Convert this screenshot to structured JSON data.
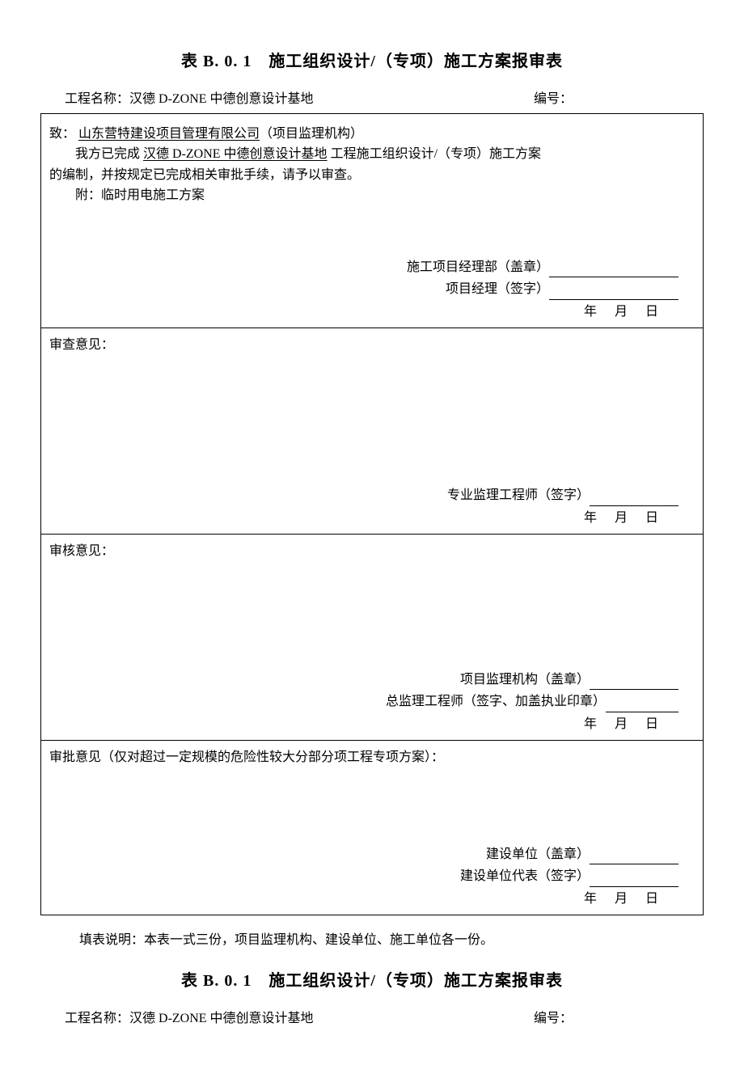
{
  "form1": {
    "title": "表 B. 0. 1　施工组织设计/（专项）施工方案报审表",
    "header": {
      "project_label": "工程名称：",
      "project_name": "汉德 D-ZONE 中德创意设计基地",
      "number_label": "编号："
    },
    "section1": {
      "to_label": "致：",
      "to_value": "山东营特建设项目管理有限公司",
      "to_suffix": "（项目监理机构）",
      "body_prefix": "我方已完成",
      "body_project": "汉德 D-ZONE 中德创意设计基地",
      "body_suffix1": "工程施工组织设计/（专项）施工方案",
      "body_line2": "的编制，并按规定已完成相关审批手续，请予以审查。",
      "attach_label": "附：",
      "attach_value": "临时用电施工方案",
      "sig1_label": "施工项目经理部（盖章）",
      "sig2_label": "项目经理（签字）",
      "date_y": "年",
      "date_m": "月",
      "date_d": "日"
    },
    "section2": {
      "heading": "审查意见：",
      "sig_label": "专业监理工程师（签字）",
      "date_y": "年",
      "date_m": "月",
      "date_d": "日"
    },
    "section3": {
      "heading": "审核意见：",
      "sig1_label": "项目监理机构（盖章）",
      "sig2_label": "总监理工程师（签字、加盖执业印章）",
      "date_y": "年",
      "date_m": "月",
      "date_d": "日"
    },
    "section4": {
      "heading": "审批意见（仅对超过一定规模的危险性较大分部分项工程专项方案）：",
      "sig1_label": "建设单位（盖章）",
      "sig2_label": "建设单位代表（签字）",
      "date_y": "年",
      "date_m": "月",
      "date_d": "日"
    },
    "footer_note": "填表说明：本表一式三份，项目监理机构、建设单位、施工单位各一份。"
  },
  "form2": {
    "title": "表 B. 0. 1　施工组织设计/（专项）施工方案报审表",
    "header": {
      "project_label": "工程名称：",
      "project_name": "汉德 D-ZONE 中德创意设计基地",
      "number_label": "编号："
    }
  }
}
